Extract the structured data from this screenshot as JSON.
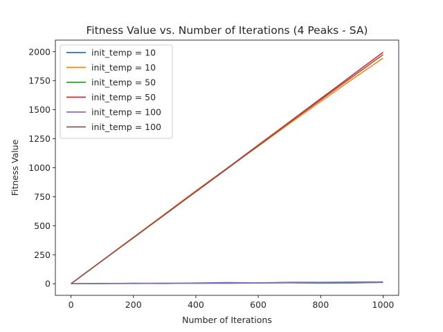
{
  "chart_data": {
    "type": "line",
    "title": "Fitness Value vs. Number of Iterations (4 Peaks - SA)",
    "xlabel": "Number of Iterations",
    "ylabel": "Fitness Value",
    "xlim": [
      -50,
      1050
    ],
    "ylim": [
      -100,
      2100
    ],
    "xticks": [
      0,
      200,
      400,
      600,
      800,
      1000
    ],
    "yticks": [
      0,
      250,
      500,
      750,
      1000,
      1250,
      1500,
      1750,
      2000
    ],
    "grid": false,
    "legend": "upper-left",
    "series": [
      {
        "name": "init_temp = 10",
        "color": "#1f77b4",
        "x": [
          0,
          100,
          200,
          300,
          400,
          500,
          600,
          700,
          800,
          900,
          1000
        ],
        "y": [
          0,
          2,
          4,
          3,
          6,
          10,
          8,
          12,
          12,
          14,
          15
        ]
      },
      {
        "name": "init_temp = 10",
        "color": "#ff7f0e",
        "x": [
          0,
          100,
          200,
          300,
          400,
          500,
          600,
          700,
          800,
          900,
          1000
        ],
        "y": [
          0,
          200,
          400,
          600,
          800,
          995,
          1185,
          1380,
          1570,
          1760,
          1945
        ]
      },
      {
        "name": "init_temp = 50",
        "color": "#2ca02c",
        "x": [
          0,
          100,
          200,
          300,
          400,
          500,
          600,
          700,
          800,
          900,
          1000
        ],
        "y": [
          0,
          1,
          3,
          2,
          5,
          4,
          6,
          8,
          5,
          6,
          12
        ]
      },
      {
        "name": "init_temp = 50",
        "color": "#d62728",
        "x": [
          0,
          100,
          200,
          300,
          400,
          500,
          600,
          700,
          800,
          900,
          1000
        ],
        "y": [
          0,
          199,
          398,
          597,
          796,
          995,
          1195,
          1395,
          1595,
          1795,
          1995
        ]
      },
      {
        "name": "init_temp = 100",
        "color": "#9467bd",
        "x": [
          0,
          100,
          200,
          300,
          400,
          500,
          600,
          700,
          800,
          900,
          1000
        ],
        "y": [
          0,
          3,
          2,
          5,
          3,
          6,
          7,
          9,
          10,
          9,
          11
        ]
      },
      {
        "name": "init_temp = 100",
        "color": "#8c564b",
        "x": [
          0,
          100,
          200,
          300,
          400,
          500,
          600,
          700,
          800,
          900,
          1000
        ],
        "y": [
          0,
          198,
          396,
          594,
          792,
          990,
          1190,
          1390,
          1585,
          1780,
          1975
        ]
      }
    ]
  }
}
